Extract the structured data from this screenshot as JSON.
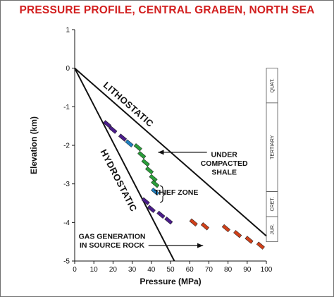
{
  "chart_data": {
    "type": "line",
    "title": "PRESSURE PROFILE, CENTRAL GRABEN, NORTH SEA",
    "xlabel": "Pressure (MPa)",
    "ylabel": "Elevation (km)",
    "xlim": [
      0,
      100
    ],
    "ylim": [
      -5,
      1
    ],
    "xticks": [
      "0",
      "10",
      "20",
      "30",
      "40",
      "50",
      "60",
      "70",
      "80",
      "90",
      "100"
    ],
    "yticks": [
      "1",
      "0",
      "-1",
      "-2",
      "-3",
      "-4",
      "-5"
    ],
    "grid": false,
    "series": [
      {
        "name": "LITHOSTATIC",
        "x": [
          0,
          100
        ],
        "y": [
          0,
          -4.35
        ],
        "color": "#111111"
      },
      {
        "name": "HYDROSTATIC",
        "x": [
          0,
          52
        ],
        "y": [
          0,
          -5.0
        ],
        "color": "#111111"
      }
    ],
    "pressure_measurements": [
      {
        "group": "purple",
        "color": "#4a1d8a",
        "points": [
          {
            "x": 17,
            "y": -1.45
          },
          {
            "x": 20,
            "y": -1.6
          },
          {
            "x": 25,
            "y": -1.8
          },
          {
            "x": 37,
            "y": -3.45
          },
          {
            "x": 40,
            "y": -3.65
          },
          {
            "x": 45,
            "y": -3.8
          },
          {
            "x": 49,
            "y": -3.95
          }
        ]
      },
      {
        "group": "blue",
        "color": "#1f7fbf",
        "points": [
          {
            "x": 28.5,
            "y": -1.95
          },
          {
            "x": 42,
            "y": -3.2
          }
        ]
      },
      {
        "group": "green",
        "color": "#2a9d3a",
        "points": [
          {
            "x": 33,
            "y": -2.05
          },
          {
            "x": 35,
            "y": -2.25
          },
          {
            "x": 37,
            "y": -2.45
          },
          {
            "x": 39,
            "y": -2.65
          },
          {
            "x": 41,
            "y": -2.85
          },
          {
            "x": 42,
            "y": -3.0
          }
        ]
      },
      {
        "group": "red",
        "color": "#d0401a",
        "points": [
          {
            "x": 62,
            "y": -4.0
          },
          {
            "x": 68,
            "y": -4.1
          },
          {
            "x": 79,
            "y": -4.15
          },
          {
            "x": 85,
            "y": -4.3
          },
          {
            "x": 91,
            "y": -4.45
          },
          {
            "x": 97,
            "y": -4.6
          }
        ]
      }
    ],
    "line_labels": [
      {
        "text": "LITHOSTATIC",
        "x": 27,
        "y": -1.0
      },
      {
        "text": "HYDROSTATIC",
        "x": 21.5,
        "y": -2.95
      }
    ],
    "annotations": [
      {
        "id": "under",
        "lines": [
          "UNDER",
          "COMPACTED",
          "SHALE"
        ],
        "x": 78,
        "y": -2.3
      },
      {
        "id": "thief",
        "lines": [
          "THIEF ZONE"
        ],
        "x": 53,
        "y": -3.28
      },
      {
        "id": "gas",
        "lines": [
          "GAS GENERATION",
          "IN SOURCE ROCK"
        ],
        "x": 19.5,
        "y": -4.42
      }
    ],
    "geologic_column": [
      {
        "label": "QUAT.",
        "top": 0,
        "bottom": -0.9
      },
      {
        "label": "TERTIARY",
        "top": -0.9,
        "bottom": -3.2
      },
      {
        "label": "CRET.",
        "top": -3.2,
        "bottom": -3.85
      },
      {
        "label": "JUR.",
        "top": -3.85,
        "bottom": -4.5
      }
    ]
  }
}
